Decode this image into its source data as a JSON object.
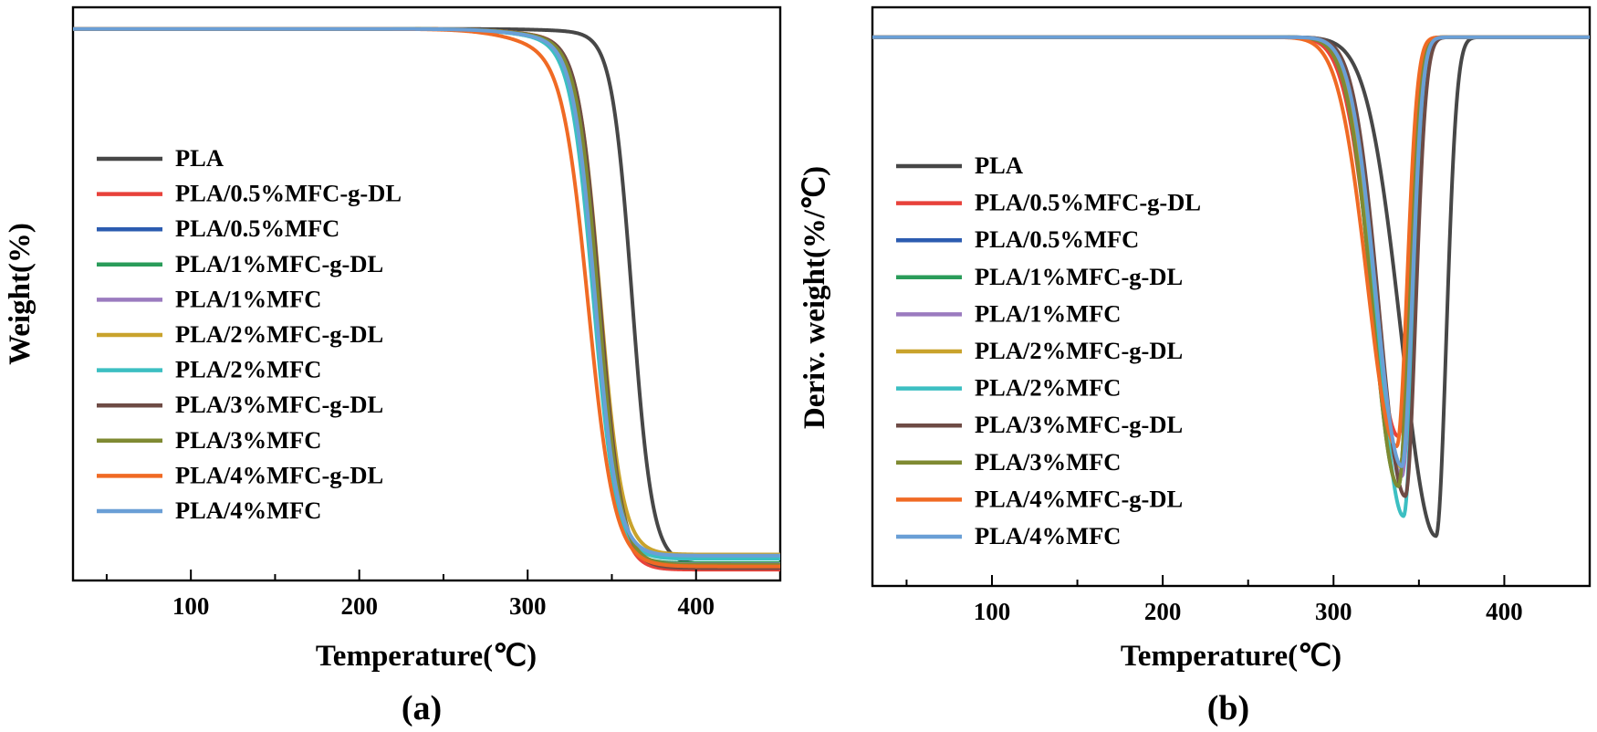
{
  "chart_data": [
    {
      "type": "line",
      "panel_label": "(a)",
      "xlabel": "Temperature(℃)",
      "ylabel": "Weight(%)",
      "xlim": [
        30,
        450
      ],
      "xticks": [
        100,
        200,
        300,
        400
      ],
      "yticks_labeled": false,
      "ylim": [
        -2,
        104
      ],
      "legend_position": "left",
      "series": [
        {
          "name": "PLA",
          "color": "#474747",
          "onset": 362,
          "width": 6.0,
          "residue": 1.0,
          "dip": 0.5
        },
        {
          "name": "PLA/0.5%MFC-g-DL",
          "color": "#e8423b",
          "onset": 342,
          "width": 6.3,
          "residue": 0.0,
          "dip": 1.5
        },
        {
          "name": "PLA/0.5%MFC",
          "color": "#2c5cb0",
          "onset": 341,
          "width": 6.5,
          "residue": 0.8,
          "dip": 1.8
        },
        {
          "name": "PLA/1%MFC-g-DL",
          "color": "#2a9c5a",
          "onset": 340,
          "width": 6.5,
          "residue": 1.2,
          "dip": 1.8
        },
        {
          "name": "PLA/1%MFC",
          "color": "#9b7bbf",
          "onset": 341,
          "width": 6.4,
          "residue": 1.0,
          "dip": 1.8
        },
        {
          "name": "PLA/2%MFC-g-DL",
          "color": "#c9a32c",
          "onset": 343,
          "width": 6.6,
          "residue": 2.8,
          "dip": 1.6
        },
        {
          "name": "PLA/2%MFC",
          "color": "#3cbfc2",
          "onset": 339,
          "width": 6.8,
          "residue": 2.0,
          "dip": 1.7
        },
        {
          "name": "PLA/3%MFC-g-DL",
          "color": "#6e4b45",
          "onset": 343,
          "width": 6.5,
          "residue": 0.3,
          "dip": 1.6
        },
        {
          "name": "PLA/3%MFC",
          "color": "#7f8a32",
          "onset": 342,
          "width": 6.6,
          "residue": 0.9,
          "dip": 1.6
        },
        {
          "name": "PLA/4%MFC-g-DL",
          "color": "#f06a24",
          "onset": 336,
          "width": 7.8,
          "residue": 0.6,
          "dip": 3.2
        },
        {
          "name": "PLA/4%MFC",
          "color": "#6a9fd6",
          "onset": 340,
          "width": 6.6,
          "residue": 2.6,
          "dip": 1.7
        }
      ]
    },
    {
      "type": "line",
      "panel_label": "(b)",
      "xlabel": "Temperature(℃)",
      "ylabel": "Deriv. weight(%/℃)",
      "xlim": [
        30,
        450
      ],
      "xticks": [
        100,
        200,
        300,
        400
      ],
      "yticks_labeled": false,
      "ylim": [
        -1.1,
        0.06
      ],
      "legend_position": "left",
      "series": [
        {
          "name": "PLA",
          "color": "#474747",
          "peak_x": 360,
          "peak_y": -1.0,
          "sigma_left": 20,
          "sigma_right": 6
        },
        {
          "name": "PLA/0.5%MFC-g-DL",
          "color": "#e8423b",
          "peak_x": 338,
          "peak_y": -0.8,
          "sigma_left": 16,
          "sigma_right": 6
        },
        {
          "name": "PLA/0.5%MFC",
          "color": "#2c5cb0",
          "peak_x": 339,
          "peak_y": -0.86,
          "sigma_left": 15,
          "sigma_right": 6
        },
        {
          "name": "PLA/1%MFC-g-DL",
          "color": "#2a9c5a",
          "peak_x": 338,
          "peak_y": -0.9,
          "sigma_left": 15,
          "sigma_right": 6
        },
        {
          "name": "PLA/1%MFC",
          "color": "#9b7bbf",
          "peak_x": 340,
          "peak_y": -0.88,
          "sigma_left": 15,
          "sigma_right": 6
        },
        {
          "name": "PLA/2%MFC-g-DL",
          "color": "#c9a32c",
          "peak_x": 339,
          "peak_y": -0.86,
          "sigma_left": 15,
          "sigma_right": 6
        },
        {
          "name": "PLA/2%MFC",
          "color": "#3cbfc2",
          "peak_x": 341,
          "peak_y": -0.96,
          "sigma_left": 15,
          "sigma_right": 6
        },
        {
          "name": "PLA/3%MFC-g-DL",
          "color": "#6e4b45",
          "peak_x": 342,
          "peak_y": -0.92,
          "sigma_left": 15,
          "sigma_right": 6
        },
        {
          "name": "PLA/3%MFC",
          "color": "#7f8a32",
          "peak_x": 338,
          "peak_y": -0.9,
          "sigma_left": 15,
          "sigma_right": 6
        },
        {
          "name": "PLA/4%MFC-g-DL",
          "color": "#f06a24",
          "peak_x": 337,
          "peak_y": -0.82,
          "sigma_left": 17,
          "sigma_right": 6
        },
        {
          "name": "PLA/4%MFC",
          "color": "#6a9fd6",
          "peak_x": 340,
          "peak_y": -0.86,
          "sigma_left": 15,
          "sigma_right": 6
        }
      ]
    }
  ]
}
